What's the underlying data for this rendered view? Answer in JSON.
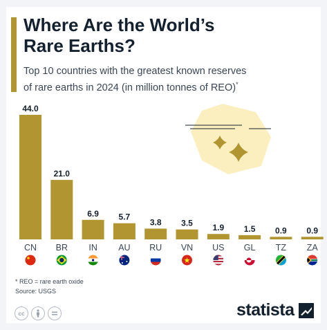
{
  "header": {
    "title_line1": "Where Are the World’s",
    "title_line2": "Rare Earths?",
    "subtitle_line1": "Top 10 countries with the greatest known reserves",
    "subtitle_line2": "of rare earths in 2024 (in million tonnes of REO)",
    "subtitle_mark": "*"
  },
  "colors": {
    "bar": "#b19530",
    "accent": "#b19530",
    "title": "#13202e",
    "illustration_bg": "#fbefc0"
  },
  "chart_data": {
    "type": "bar",
    "categories": [
      "CN",
      "BR",
      "IN",
      "AU",
      "RU",
      "VN",
      "US",
      "GL",
      "TZ",
      "ZA"
    ],
    "values": [
      44.0,
      21.0,
      6.9,
      5.7,
      3.8,
      3.5,
      1.9,
      1.5,
      0.9,
      0.9
    ],
    "value_labels": [
      "44.0",
      "21.0",
      "6.9",
      "5.7",
      "3.8",
      "3.5",
      "1.9",
      "1.5",
      "0.9",
      "0.9"
    ],
    "flags": [
      "flag-china-icon",
      "flag-brazil-icon",
      "flag-india-icon",
      "flag-australia-icon",
      "flag-russia-icon",
      "flag-vietnam-icon",
      "flag-usa-icon",
      "flag-greenland-icon",
      "flag-tanzania-icon",
      "flag-south-africa-icon"
    ],
    "title": "Where Are the World’s Rare Earths?",
    "xlabel": "",
    "ylabel": "",
    "ylim": [
      0,
      44
    ],
    "grid": false
  },
  "footer": {
    "note": "* REO = rare earth oxide",
    "source": "Source: USGS",
    "brand": "statista",
    "license_icons": [
      "creative-commons-icon",
      "attribution-icon",
      "no-derivatives-icon"
    ]
  }
}
